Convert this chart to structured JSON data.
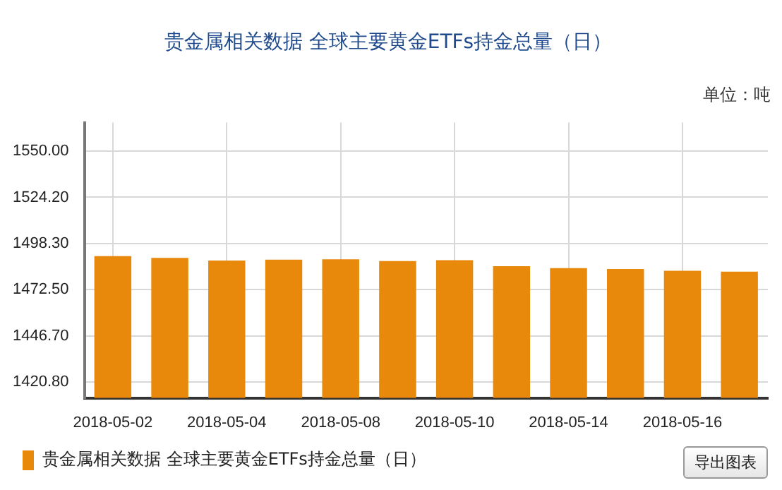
{
  "chart_data": {
    "type": "bar",
    "title": "贵金属相关数据 全球主要黄金ETFs持金总量（日）",
    "annotations": [
      "单位：吨",
      "导出图表"
    ],
    "categories": [
      "2018-05-02",
      null,
      "2018-05-04",
      null,
      "2018-05-08",
      null,
      "2018-05-10",
      null,
      "2018-05-14",
      null,
      "2018-05-16",
      null
    ],
    "series": [
      {
        "name": "贵金属相关数据 全球主要黄金ETFs持金总量（日）",
        "color": "#e8890c",
        "values": [
          1491.3,
          1490.3,
          1488.8,
          1489.3,
          1489.5,
          1488.5,
          1489.0,
          1485.7,
          1484.6,
          1484.1,
          1483.1,
          1482.6
        ]
      }
    ],
    "ylim": [
      1412,
      1566
    ],
    "yticks": [
      {
        "value": 1420.8,
        "label": "1420.80"
      },
      {
        "value": 1446.7,
        "label": "1446.70"
      },
      {
        "value": 1472.5,
        "label": "1472.50"
      },
      {
        "value": 1498.3,
        "label": "1498.30"
      },
      {
        "value": 1524.2,
        "label": "1524.20"
      },
      {
        "value": 1550,
        "label": "1550.00"
      }
    ],
    "grid": true,
    "legend": "bottom left"
  }
}
